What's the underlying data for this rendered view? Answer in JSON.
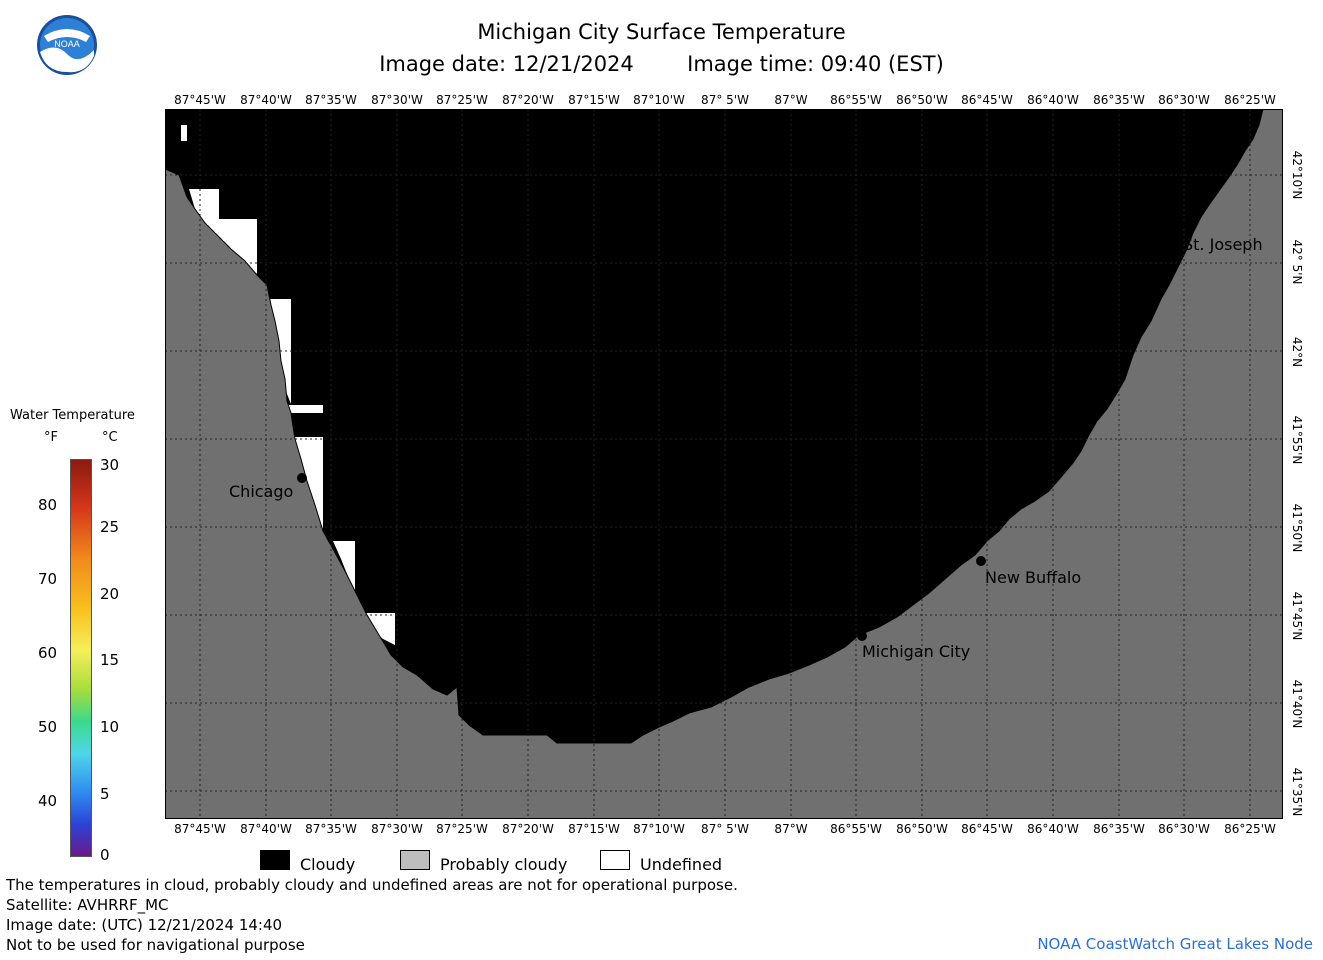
{
  "header": {
    "title": "Michigan City Surface Temperature",
    "image_date_label": "Image date: 12/21/2024",
    "image_time_label": "Image time: 09:40 (EST)"
  },
  "logo": {
    "text": "NOAA",
    "icon": "noaa-logo"
  },
  "map": {
    "longitude_labels": [
      "87°45'W",
      "87°40'W",
      "87°35'W",
      "87°30'W",
      "87°25'W",
      "87°20'W",
      "87°15'W",
      "87°10'W",
      "87° 5'W",
      "87°W",
      "86°55'W",
      "86°50'W",
      "86°45'W",
      "86°40'W",
      "86°35'W",
      "86°30'W",
      "86°25'W"
    ],
    "latitude_labels": [
      "42°10'N",
      "42° 5'N",
      "42°N",
      "41°55'N",
      "41°50'N",
      "41°45'N",
      "41°40'N",
      "41°35'N"
    ],
    "cities": [
      {
        "name": "Chicago"
      },
      {
        "name": "St. Joseph"
      },
      {
        "name": "New Buffalo"
      },
      {
        "name": "Michigan City"
      }
    ],
    "colors": {
      "cloudy": "#000000",
      "land": "#707070",
      "undefined": "#ffffff"
    }
  },
  "legend": {
    "title": "Water Temperature",
    "unit_f": "°F",
    "unit_c": "°C",
    "f_ticks": [
      "80",
      "70",
      "60",
      "50",
      "40"
    ],
    "c_ticks": [
      "30",
      "25",
      "20",
      "15",
      "10",
      "5",
      "0"
    ]
  },
  "key": {
    "cloudy": "Cloudy",
    "probably_cloudy": "Probably cloudy",
    "undefined": "Undefined"
  },
  "footer": {
    "line1": "The temperatures in cloud, probably cloudy and undefined areas are not for operational purpose.",
    "line2": "Satellite: AVHRRF_MC",
    "line3": "Image date: (UTC) 12/21/2024  14:40",
    "line4": "Not to be used for navigational purpose",
    "credit": "NOAA CoastWatch Great Lakes Node"
  }
}
